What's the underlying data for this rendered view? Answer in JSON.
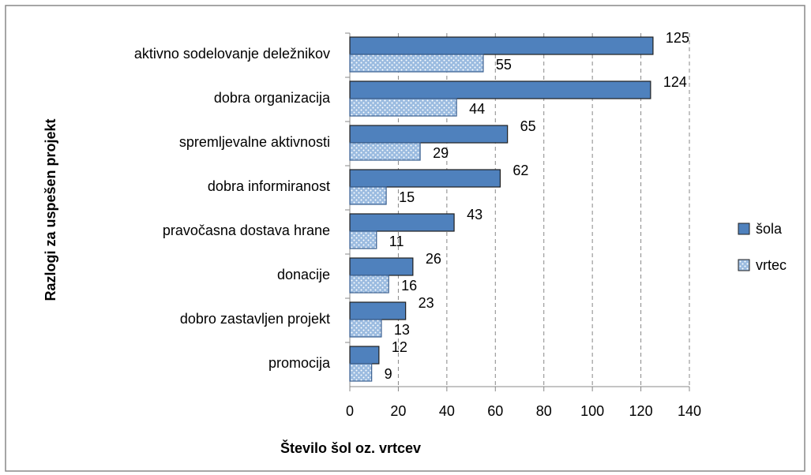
{
  "chart_data": {
    "type": "hbar",
    "categories": [
      "aktivno sodelovanje deležnikov",
      "dobra organizacija",
      "spremljevalne aktivnosti",
      "dobra informiranost",
      "pravočasna dostava hrane",
      "donacije",
      "dobro zastavljen projekt",
      "promocija"
    ],
    "series": [
      {
        "name": "šola",
        "color": "#4f81bd",
        "values": [
          125,
          124,
          65,
          62,
          43,
          26,
          23,
          12
        ]
      },
      {
        "name": "vrtec",
        "color": "#9bbbe0",
        "pattern": "dots",
        "values": [
          55,
          44,
          29,
          15,
          11,
          16,
          13,
          9
        ]
      }
    ],
    "xlim": [
      0,
      140
    ],
    "xticks": [
      0,
      20,
      40,
      60,
      80,
      100,
      120,
      140
    ],
    "xlabel": "Število šol oz. vrtcev",
    "ylabel": "Razlogi za uspešen projekt",
    "grid": true,
    "legend": "right"
  }
}
